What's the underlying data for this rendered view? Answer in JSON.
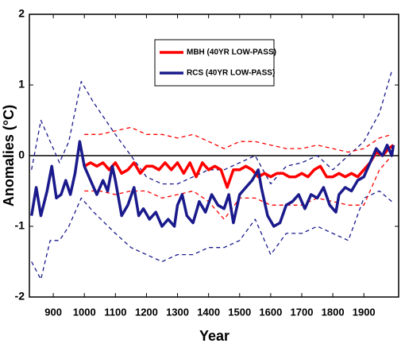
{
  "chart_data": {
    "type": "line",
    "xlabel": "Year",
    "ylabel": "Anomalies (°C)",
    "xlim": [
      823,
      2012
    ],
    "ylim": [
      -2,
      2
    ],
    "xticks": [
      900,
      1000,
      1100,
      1200,
      1300,
      1400,
      1500,
      1600,
      1700,
      1800,
      1900
    ],
    "yticks": [
      -2,
      -1,
      0,
      1,
      2
    ],
    "zero_line": true,
    "series": [
      {
        "color": "#1a1a8c",
        "dash": true,
        "x": [
          830,
          860,
          890,
          920,
          950,
          990,
          1030,
          1100,
          1150,
          1200,
          1250,
          1300,
          1350,
          1400,
          1450,
          1500,
          1550,
          1600,
          1650,
          1700,
          1750,
          1800,
          1850,
          1900,
          1950,
          1990
        ],
        "values": [
          -0.2,
          0.5,
          0.2,
          -0.1,
          0.2,
          1.05,
          0.75,
          0.3,
          0.0,
          -0.3,
          -0.4,
          -0.4,
          -0.3,
          -0.2,
          -0.2,
          -0.1,
          0.0,
          -0.4,
          -0.15,
          -0.1,
          0.0,
          -0.2,
          0.0,
          0.2,
          0.6,
          1.2
        ]
      },
      {
        "color": "#1a1a8c",
        "dash": true,
        "x": [
          830,
          860,
          890,
          920,
          950,
          990,
          1030,
          1100,
          1150,
          1200,
          1250,
          1300,
          1350,
          1400,
          1450,
          1500,
          1550,
          1600,
          1650,
          1700,
          1750,
          1800,
          1850,
          1900,
          1950,
          1990
        ],
        "values": [
          -1.5,
          -1.75,
          -1.2,
          -1.2,
          -1.0,
          -0.6,
          -0.8,
          -1.1,
          -1.3,
          -1.4,
          -1.5,
          -1.4,
          -1.4,
          -1.3,
          -1.3,
          -1.2,
          -0.9,
          -1.4,
          -1.1,
          -1.1,
          -1.0,
          -1.1,
          -1.2,
          -0.6,
          -0.5,
          -0.65
        ]
      },
      {
        "color": "#ff0000",
        "dash": true,
        "x": [
          1000,
          1050,
          1100,
          1150,
          1200,
          1250,
          1300,
          1350,
          1400,
          1450,
          1500,
          1550,
          1600,
          1650,
          1700,
          1750,
          1800,
          1850,
          1900,
          1950,
          1990
        ],
        "values": [
          0.3,
          0.3,
          0.35,
          0.4,
          0.3,
          0.3,
          0.25,
          0.3,
          0.2,
          0.1,
          0.2,
          0.2,
          0.15,
          0.1,
          0.1,
          0.15,
          0.1,
          0.05,
          0.1,
          0.25,
          0.3
        ]
      },
      {
        "color": "#ff0000",
        "dash": true,
        "x": [
          1000,
          1050,
          1100,
          1150,
          1200,
          1250,
          1300,
          1350,
          1400,
          1450,
          1500,
          1550,
          1600,
          1650,
          1700,
          1750,
          1800,
          1850,
          1900,
          1950,
          1990
        ],
        "values": [
          -0.5,
          -0.5,
          -0.55,
          -0.5,
          -0.5,
          -0.6,
          -0.55,
          -0.5,
          -0.65,
          -0.9,
          -0.6,
          -0.6,
          -0.7,
          -0.7,
          -0.7,
          -0.6,
          -0.65,
          -0.7,
          -0.7,
          -0.2,
          0.0
        ]
      },
      {
        "name": "MBH (40YR LOW-PASS)",
        "color": "#ff0000",
        "dash": false,
        "x": [
          1000,
          1020,
          1040,
          1060,
          1080,
          1100,
          1120,
          1140,
          1160,
          1180,
          1200,
          1220,
          1240,
          1260,
          1280,
          1300,
          1320,
          1340,
          1360,
          1380,
          1400,
          1420,
          1440,
          1460,
          1480,
          1500,
          1520,
          1540,
          1560,
          1580,
          1600,
          1620,
          1640,
          1660,
          1680,
          1700,
          1720,
          1740,
          1760,
          1780,
          1800,
          1820,
          1840,
          1860,
          1880,
          1900,
          1920,
          1940,
          1960,
          1980,
          1995
        ],
        "values": [
          -0.15,
          -0.1,
          -0.15,
          -0.1,
          -0.2,
          -0.1,
          -0.25,
          -0.2,
          -0.1,
          -0.25,
          -0.15,
          -0.15,
          -0.2,
          -0.1,
          -0.2,
          -0.1,
          -0.25,
          -0.1,
          -0.3,
          -0.1,
          -0.2,
          -0.15,
          -0.2,
          -0.45,
          -0.2,
          -0.2,
          -0.15,
          -0.2,
          -0.3,
          -0.25,
          -0.3,
          -0.25,
          -0.25,
          -0.3,
          -0.3,
          -0.25,
          -0.3,
          -0.2,
          -0.15,
          -0.3,
          -0.3,
          -0.25,
          -0.3,
          -0.25,
          -0.3,
          -0.2,
          -0.1,
          0.05,
          0.0,
          0.1,
          0.15
        ]
      },
      {
        "name": "RCS (40YR LOW-PASS)",
        "color": "#1a1a8c",
        "dash": false,
        "x": [
          830,
          845,
          860,
          880,
          895,
          910,
          925,
          940,
          955,
          970,
          985,
          1000,
          1020,
          1040,
          1060,
          1075,
          1090,
          1100,
          1120,
          1140,
          1160,
          1175,
          1190,
          1210,
          1230,
          1250,
          1270,
          1290,
          1300,
          1315,
          1330,
          1350,
          1370,
          1390,
          1410,
          1430,
          1450,
          1465,
          1480,
          1500,
          1520,
          1540,
          1560,
          1570,
          1590,
          1610,
          1630,
          1650,
          1670,
          1690,
          1710,
          1730,
          1750,
          1770,
          1790,
          1810,
          1820,
          1840,
          1860,
          1880,
          1900,
          1920,
          1940,
          1960,
          1975,
          1990,
          1995
        ],
        "values": [
          -0.85,
          -0.45,
          -0.85,
          -0.5,
          -0.15,
          -0.6,
          -0.55,
          -0.35,
          -0.55,
          -0.25,
          0.2,
          -0.15,
          -0.35,
          -0.55,
          -0.35,
          -0.5,
          -0.15,
          -0.35,
          -0.85,
          -0.7,
          -0.45,
          -0.85,
          -0.75,
          -0.9,
          -0.8,
          -1.0,
          -0.9,
          -1.0,
          -0.7,
          -0.55,
          -0.85,
          -0.95,
          -0.65,
          -0.8,
          -0.55,
          -0.7,
          -0.75,
          -0.55,
          -0.95,
          -0.55,
          -0.45,
          -0.35,
          -0.2,
          -0.45,
          -0.85,
          -1.0,
          -0.95,
          -0.7,
          -0.65,
          -0.55,
          -0.75,
          -0.55,
          -0.6,
          -0.45,
          -0.7,
          -0.8,
          -0.55,
          -0.45,
          -0.5,
          -0.35,
          -0.3,
          -0.1,
          0.1,
          0.0,
          0.15,
          0.0,
          0.15
        ]
      }
    ]
  }
}
